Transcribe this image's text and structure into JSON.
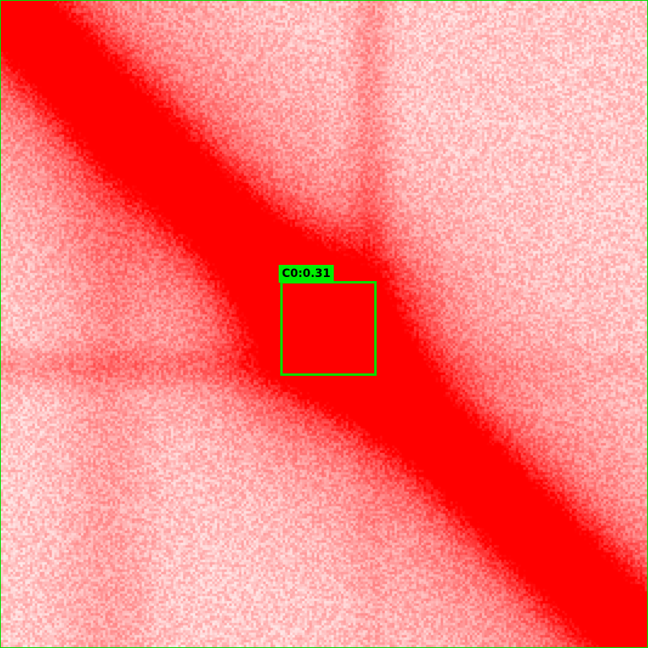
{
  "image": {
    "subject": "contact-map-heatmap",
    "colors": {
      "background": "#ffeef0",
      "signal": "#ff0000",
      "detection": "#00dd00",
      "label_bg": "#00ee00",
      "label_text": "#000000"
    }
  },
  "detection": {
    "label": "C0:0.31"
  }
}
